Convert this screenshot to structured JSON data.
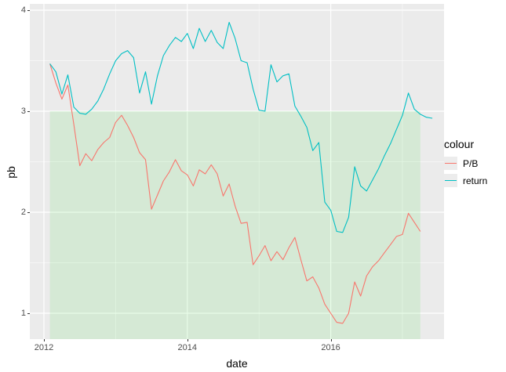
{
  "chart_data": {
    "type": "line",
    "title": "",
    "xlabel": "date",
    "ylabel": "pb",
    "frequency": "monthly",
    "start_month": "2012-01",
    "series": [
      {
        "name": "P/B",
        "color": "#F8766D",
        "end_month": "2017-03",
        "values": [
          3.47,
          3.28,
          3.12,
          3.26,
          2.87,
          2.46,
          2.58,
          2.51,
          2.62,
          2.69,
          2.74,
          2.89,
          2.96,
          2.86,
          2.74,
          2.59,
          2.52,
          2.03,
          2.17,
          2.31,
          2.4,
          2.52,
          2.41,
          2.37,
          2.26,
          2.42,
          2.38,
          2.47,
          2.38,
          2.16,
          2.28,
          2.06,
          1.89,
          1.9,
          1.48,
          1.57,
          1.67,
          1.52,
          1.61,
          1.53,
          1.65,
          1.75,
          1.53,
          1.32,
          1.36,
          1.25,
          1.09,
          1.0,
          0.91,
          0.9,
          1.0,
          1.31,
          1.17,
          1.37,
          1.46,
          1.52,
          1.6,
          1.68,
          1.76,
          1.78,
          1.99,
          1.9,
          1.81
        ]
      },
      {
        "name": "return",
        "color": "#00BFC4",
        "end_month": "2017-05",
        "values": [
          3.47,
          3.39,
          3.17,
          3.36,
          3.04,
          2.98,
          2.97,
          3.02,
          3.1,
          3.22,
          3.37,
          3.5,
          3.57,
          3.6,
          3.53,
          3.18,
          3.39,
          3.07,
          3.35,
          3.55,
          3.65,
          3.73,
          3.69,
          3.77,
          3.62,
          3.82,
          3.69,
          3.8,
          3.68,
          3.62,
          3.88,
          3.72,
          3.5,
          3.48,
          3.22,
          3.01,
          3.0,
          3.46,
          3.29,
          3.35,
          3.37,
          3.05,
          2.95,
          2.84,
          2.61,
          2.69,
          2.1,
          2.02,
          1.81,
          1.8,
          1.95,
          2.45,
          2.26,
          2.21,
          2.32,
          2.43,
          2.56,
          2.68,
          2.82,
          2.96,
          3.18,
          3.02,
          2.97,
          2.94,
          2.93
        ]
      }
    ],
    "highlight_region": {
      "x_start": 2012.083,
      "x_end": 2017.25,
      "y_top": 3.0,
      "y_bottom_clipped_to_panel": true,
      "fill": "#00E000",
      "opacity": 0.09
    },
    "x_axis": {
      "label": "date",
      "domain": [
        2011.803,
        2017.58
      ],
      "ticks": [
        {
          "label": "2012",
          "t": 2012
        },
        {
          "label": "2014",
          "t": 2014
        },
        {
          "label": "2016",
          "t": 2016
        }
      ],
      "minor_ticks": [
        2013,
        2015,
        2017
      ]
    },
    "y_axis": {
      "label": "pb",
      "domain": [
        0.744,
        4.062
      ],
      "ticks": [
        {
          "label": "1",
          "v": 1
        },
        {
          "label": "2",
          "v": 2
        },
        {
          "label": "3",
          "v": 3
        },
        {
          "label": "4",
          "v": 4
        }
      ],
      "minor_ticks": [
        1.5,
        2.5,
        3.5
      ]
    },
    "legend": {
      "position": "right",
      "title": "colour",
      "items": [
        {
          "label": "P/B",
          "color": "#F8766D"
        },
        {
          "label": "return",
          "color": "#00BFC4"
        }
      ]
    },
    "style": {
      "panel_background": "#EBEBEB",
      "grid_color": "#FFFFFF",
      "tick_text_color": "#4D4D4D",
      "tick_mark_color": "#333333",
      "axis_title_color": "#000000",
      "legend_key_background": "#ECECEC"
    }
  }
}
